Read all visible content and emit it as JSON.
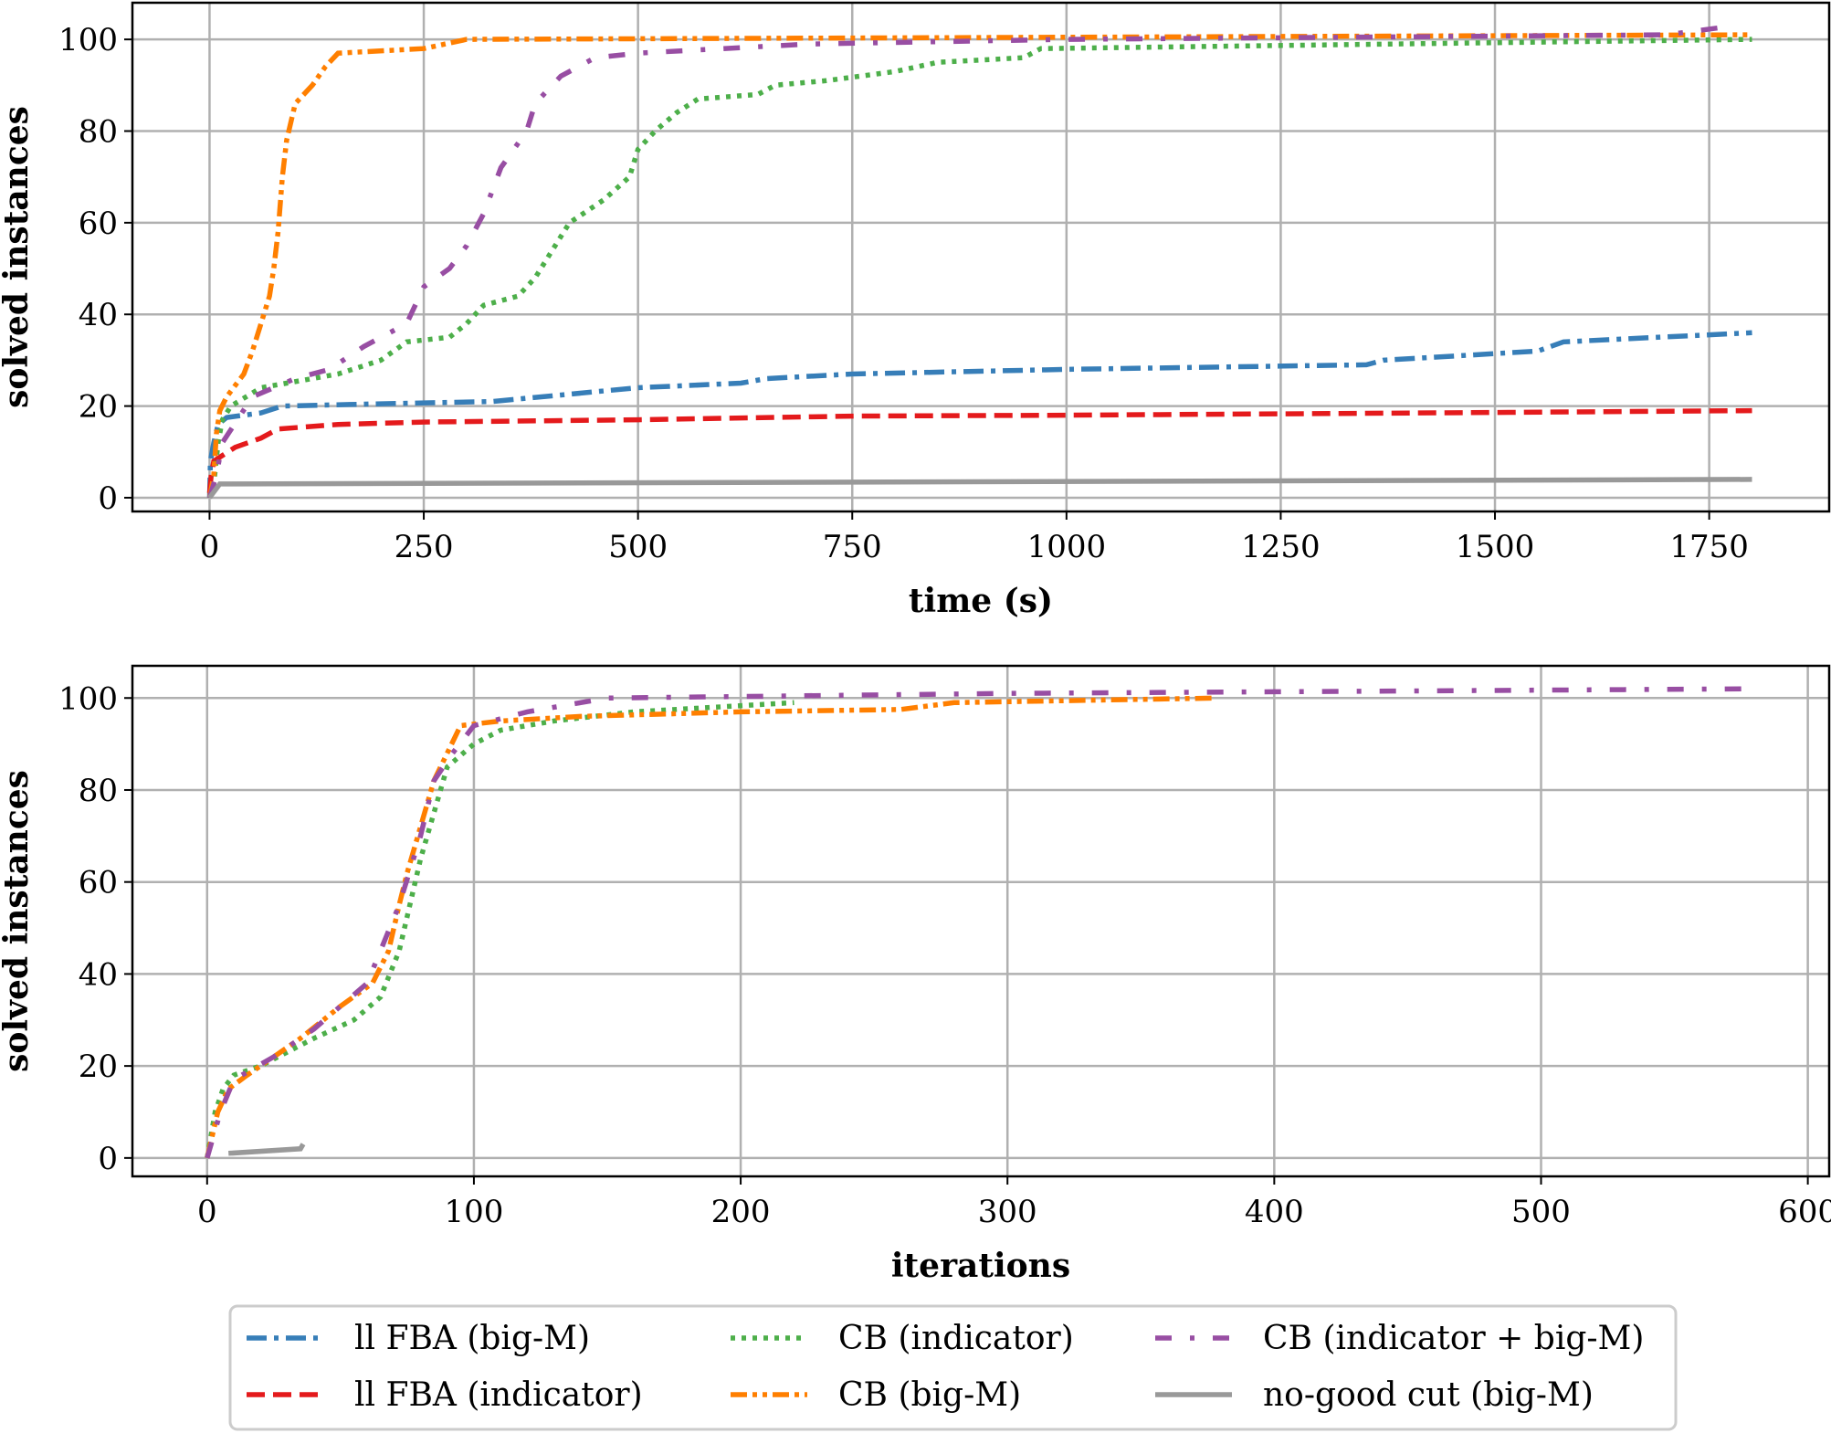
{
  "legend": {
    "placement": "bottom",
    "entries": [
      {
        "name": "ll FBA (big-M)",
        "color": "#377eb8",
        "style": "dashdot"
      },
      {
        "name": "ll FBA (indicator)",
        "color": "#e41a1c",
        "style": "dashed"
      },
      {
        "name": "CB (indicator)",
        "color": "#4daf4a",
        "style": "dotted"
      },
      {
        "name": "CB (big-M)",
        "color": "#ff7f00",
        "style": "dashdotdot"
      },
      {
        "name": "CB (indicator + big-M)",
        "color": "#984ea3",
        "style": "loose-dashdot"
      },
      {
        "name": "no-good cut (big-M)",
        "color": "#999999",
        "style": "solid"
      }
    ]
  },
  "chart_data": [
    {
      "type": "line",
      "xlabel": "time (s)",
      "ylabel": "solved instances",
      "xlim": [
        -90,
        1890
      ],
      "ylim": [
        -3,
        108
      ],
      "grid": true,
      "xticks": [
        0,
        250,
        500,
        750,
        1000,
        1250,
        1500,
        1750
      ],
      "yticks": [
        0,
        20,
        40,
        60,
        80,
        100
      ],
      "series": [
        {
          "name": "ll FBA (big-M)",
          "points": [
            [
              0,
              0
            ],
            [
              1,
              8
            ],
            [
              5,
              12
            ],
            [
              10,
              16
            ],
            [
              20,
              17.5
            ],
            [
              60,
              18.5
            ],
            [
              85,
              20
            ],
            [
              200,
              20.5
            ],
            [
              330,
              21
            ],
            [
              500,
              24
            ],
            [
              620,
              25
            ],
            [
              650,
              26
            ],
            [
              750,
              27
            ],
            [
              1000,
              28
            ],
            [
              1350,
              29
            ],
            [
              1370,
              30
            ],
            [
              1550,
              32
            ],
            [
              1580,
              34
            ],
            [
              1800,
              36
            ]
          ]
        },
        {
          "name": "ll FBA (indicator)",
          "points": [
            [
              0,
              1
            ],
            [
              2,
              5
            ],
            [
              5,
              8
            ],
            [
              30,
              11
            ],
            [
              60,
              13
            ],
            [
              80,
              15
            ],
            [
              150,
              16
            ],
            [
              250,
              16.5
            ],
            [
              500,
              17
            ],
            [
              750,
              17.8
            ],
            [
              1000,
              18
            ],
            [
              1500,
              18.6
            ],
            [
              1800,
              19
            ]
          ]
        },
        {
          "name": "CB (indicator)",
          "points": [
            [
              0,
              0
            ],
            [
              5,
              3
            ],
            [
              10,
              12
            ],
            [
              15,
              17
            ],
            [
              25,
              20
            ],
            [
              60,
              24
            ],
            [
              150,
              27
            ],
            [
              200,
              30
            ],
            [
              230,
              34
            ],
            [
              280,
              35
            ],
            [
              300,
              38
            ],
            [
              320,
              42
            ],
            [
              360,
              44
            ],
            [
              380,
              48
            ],
            [
              400,
              54
            ],
            [
              420,
              60
            ],
            [
              460,
              65
            ],
            [
              490,
              70
            ],
            [
              500,
              76
            ],
            [
              520,
              80
            ],
            [
              545,
              84
            ],
            [
              570,
              87
            ],
            [
              640,
              88
            ],
            [
              660,
              90
            ],
            [
              720,
              91
            ],
            [
              760,
              92
            ],
            [
              800,
              93
            ],
            [
              850,
              95
            ],
            [
              950,
              96
            ],
            [
              970,
              98
            ],
            [
              1800,
              100
            ]
          ]
        },
        {
          "name": "CB (big-M)",
          "points": [
            [
              0,
              0
            ],
            [
              5,
              5
            ],
            [
              8,
              14
            ],
            [
              12,
              19
            ],
            [
              20,
              22
            ],
            [
              40,
              27
            ],
            [
              50,
              32
            ],
            [
              60,
              38
            ],
            [
              70,
              44
            ],
            [
              75,
              50
            ],
            [
              80,
              58
            ],
            [
              85,
              70
            ],
            [
              90,
              78
            ],
            [
              100,
              86
            ],
            [
              120,
              90
            ],
            [
              135,
              94
            ],
            [
              150,
              97
            ],
            [
              250,
              98
            ],
            [
              300,
              100
            ],
            [
              1800,
              101
            ]
          ]
        },
        {
          "name": "CB (indicator + big-M)",
          "points": [
            [
              0,
              0
            ],
            [
              8,
              5
            ],
            [
              15,
              12
            ],
            [
              50,
              22
            ],
            [
              100,
              26
            ],
            [
              140,
              28
            ],
            [
              180,
              33
            ],
            [
              230,
              38
            ],
            [
              250,
              46
            ],
            [
              280,
              50
            ],
            [
              300,
              55
            ],
            [
              320,
              62
            ],
            [
              340,
              72
            ],
            [
              370,
              80
            ],
            [
              380,
              86
            ],
            [
              410,
              92
            ],
            [
              450,
              96
            ],
            [
              500,
              97
            ],
            [
              700,
              99
            ],
            [
              1000,
              100
            ],
            [
              1700,
              101
            ],
            [
              1780,
              103
            ]
          ]
        },
        {
          "name": "no-good cut (big-M)",
          "points": [
            [
              0,
              0
            ],
            [
              8,
              2
            ],
            [
              12,
              3
            ],
            [
              1800,
              4
            ]
          ]
        }
      ]
    },
    {
      "type": "line",
      "xlabel": "iterations",
      "ylabel": "solved instances",
      "xlim": [
        -28,
        608
      ],
      "ylim": [
        -4,
        107
      ],
      "grid": true,
      "xticks": [
        0,
        100,
        200,
        300,
        400,
        500,
        600
      ],
      "yticks": [
        0,
        20,
        40,
        60,
        80,
        100
      ],
      "series": [
        {
          "name": "CB (indicator)",
          "points": [
            [
              0,
              0
            ],
            [
              3,
              10
            ],
            [
              6,
              15
            ],
            [
              10,
              18
            ],
            [
              20,
              20
            ],
            [
              30,
              23
            ],
            [
              40,
              26
            ],
            [
              55,
              30
            ],
            [
              65,
              35
            ],
            [
              72,
              45
            ],
            [
              76,
              55
            ],
            [
              80,
              65
            ],
            [
              85,
              75
            ],
            [
              90,
              85
            ],
            [
              100,
              90
            ],
            [
              110,
              93
            ],
            [
              130,
              95
            ],
            [
              160,
              97
            ],
            [
              220,
              99
            ]
          ]
        },
        {
          "name": "CB (big-M)",
          "points": [
            [
              0,
              0
            ],
            [
              4,
              10
            ],
            [
              8,
              15
            ],
            [
              15,
              18
            ],
            [
              25,
              22
            ],
            [
              35,
              26
            ],
            [
              50,
              33
            ],
            [
              62,
              38
            ],
            [
              68,
              45
            ],
            [
              72,
              55
            ],
            [
              75,
              62
            ],
            [
              80,
              72
            ],
            [
              85,
              82
            ],
            [
              90,
              88
            ],
            [
              95,
              94
            ],
            [
              110,
              95
            ],
            [
              140,
              96
            ],
            [
              200,
              97
            ],
            [
              260,
              97.5
            ],
            [
              280,
              99
            ],
            [
              378,
              100
            ]
          ]
        },
        {
          "name": "CB (indicator + big-M)",
          "points": [
            [
              0,
              0
            ],
            [
              5,
              10
            ],
            [
              10,
              17
            ],
            [
              25,
              22
            ],
            [
              40,
              28
            ],
            [
              60,
              38
            ],
            [
              72,
              55
            ],
            [
              80,
              70
            ],
            [
              85,
              82
            ],
            [
              92,
              88
            ],
            [
              100,
              94
            ],
            [
              120,
              97
            ],
            [
              150,
              100
            ],
            [
              300,
              101
            ],
            [
              580,
              102
            ]
          ]
        },
        {
          "name": "no-good cut (big-M)",
          "points": [
            [
              8,
              1
            ],
            [
              35,
              2
            ],
            [
              36,
              3
            ]
          ]
        }
      ]
    }
  ]
}
